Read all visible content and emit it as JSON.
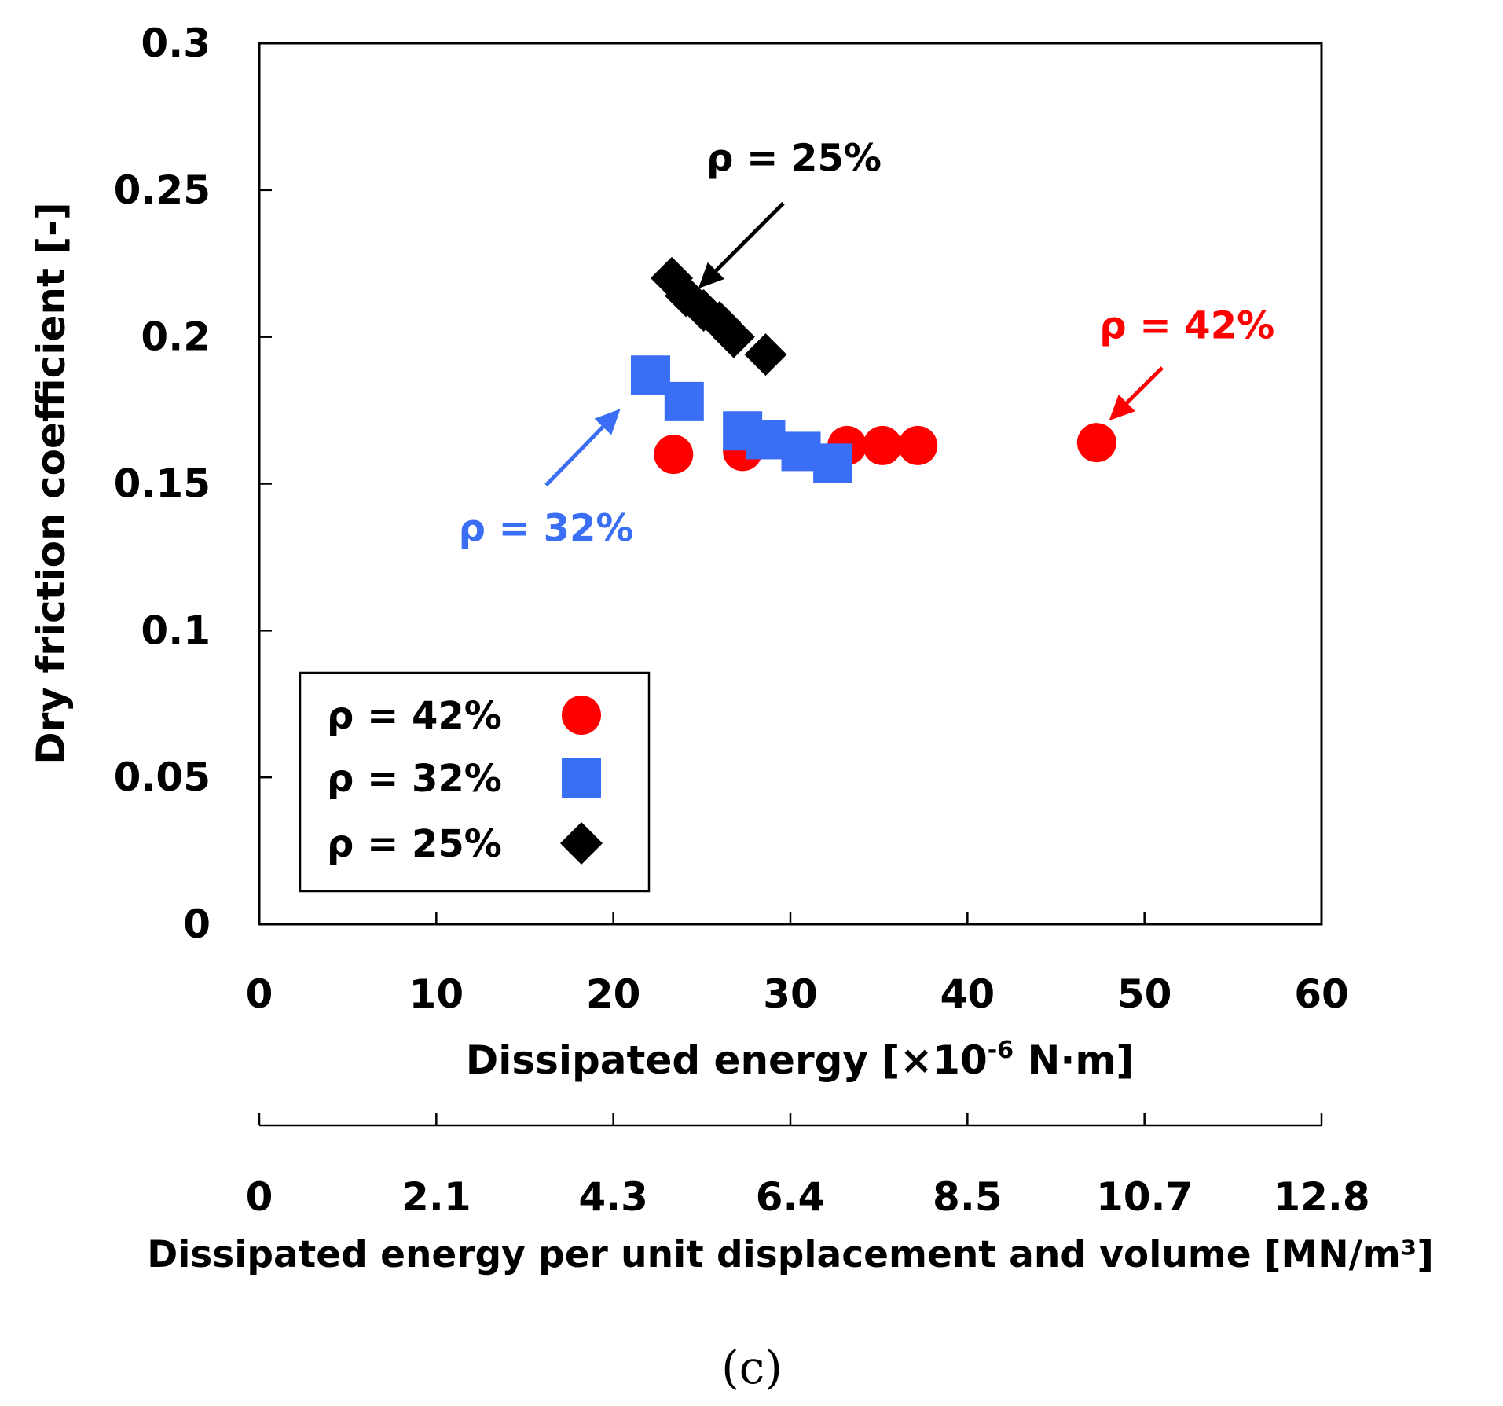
{
  "chart_data": {
    "type": "scatter",
    "caption": "(c)",
    "xlabel": "Dissipated  energy [×10",
    "xlabel_exp": "-6",
    "xlabel_unit": " N·m]",
    "x2label": "Dissipated  energy per unit displacement  and volume [MN/m³]",
    "ylabel": "Dry friction coefficient [-]",
    "xlim": [
      0,
      60
    ],
    "ylim": [
      0,
      0.3
    ],
    "x_ticks": [
      0,
      10,
      20,
      30,
      40,
      50,
      60
    ],
    "x_tick_labels": [
      "0",
      "10",
      "20",
      "30",
      "40",
      "50",
      "60"
    ],
    "x2_tick_labels": [
      "0",
      "2.1",
      "4.3",
      "6.4",
      "8.5",
      "10.7",
      "12.8"
    ],
    "y_ticks": [
      0,
      0.05,
      0.1,
      0.15,
      0.2,
      0.25,
      0.3
    ],
    "y_tick_labels": [
      "0",
      "0.05",
      "0.1",
      "0.15",
      "0.2",
      "0.25",
      "0.3"
    ],
    "series": [
      {
        "name": "ρ = 42%",
        "marker": "circle",
        "color": "#ff0000",
        "points": [
          {
            "x": 23.4,
            "y": 0.16
          },
          {
            "x": 27.3,
            "y": 0.161
          },
          {
            "x": 33.2,
            "y": 0.163
          },
          {
            "x": 35.2,
            "y": 0.163
          },
          {
            "x": 37.2,
            "y": 0.163
          },
          {
            "x": 47.3,
            "y": 0.164
          }
        ]
      },
      {
        "name": "ρ = 32%",
        "marker": "square",
        "color": "#3a6ef5",
        "points": [
          {
            "x": 22.1,
            "y": 0.187
          },
          {
            "x": 24.0,
            "y": 0.178
          },
          {
            "x": 27.3,
            "y": 0.168
          },
          {
            "x": 28.6,
            "y": 0.165
          },
          {
            "x": 30.6,
            "y": 0.161
          },
          {
            "x": 32.4,
            "y": 0.157
          }
        ]
      },
      {
        "name": "ρ = 25%",
        "marker": "diamond",
        "color": "#000000",
        "points": [
          {
            "x": 23.3,
            "y": 0.22
          },
          {
            "x": 24.1,
            "y": 0.214
          },
          {
            "x": 25.1,
            "y": 0.209
          },
          {
            "x": 26.0,
            "y": 0.205
          },
          {
            "x": 26.8,
            "y": 0.2
          },
          {
            "x": 28.6,
            "y": 0.194
          }
        ]
      }
    ],
    "annotations": [
      {
        "text": "ρ = 25%",
        "color": "#000000",
        "label_x": 30.2,
        "label_y": 0.2565,
        "arrow_from": [
          29.6,
          0.2455
        ],
        "arrow_to": [
          24.8,
          0.2165
        ]
      },
      {
        "text": "ρ = 42%",
        "color": "#ff0000",
        "label_x": 52.4,
        "label_y": 0.1995,
        "arrow_from": [
          51.0,
          0.1895
        ],
        "arrow_to": [
          48.0,
          0.1715
        ]
      },
      {
        "text": "ρ = 32%",
        "color": "#3a6ef5",
        "label_x": 16.2,
        "label_y": 0.1305,
        "arrow_from": [
          16.2,
          0.1495
        ],
        "arrow_to": [
          20.4,
          0.1755
        ]
      }
    ],
    "legend": {
      "position": "bottom-left"
    }
  }
}
